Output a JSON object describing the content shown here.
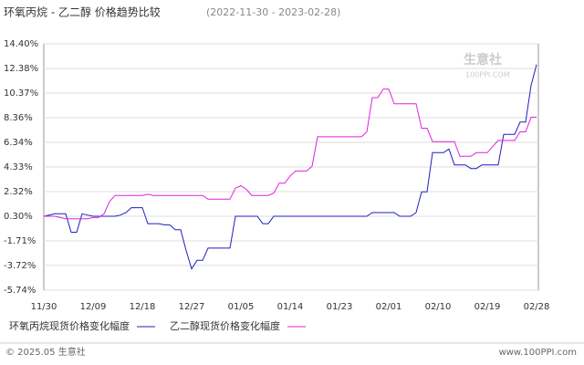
{
  "chart_data": {
    "type": "line",
    "title": "环氧丙烷 - 乙二醇 价格趋势比较",
    "subtitle": "(2022-11-30 - 2023-02-28)",
    "watermark": "生意社",
    "watermark_sub": "100PPI.COM",
    "footer_left": "© 2025.05 生意社",
    "footer_right": "www.100PPI.com",
    "categories": [
      "11/30",
      null,
      null,
      null,
      null,
      null,
      null,
      null,
      null,
      "12/09",
      null,
      null,
      null,
      null,
      null,
      null,
      null,
      null,
      "12/18",
      null,
      null,
      null,
      null,
      null,
      null,
      null,
      null,
      "12/27",
      null,
      null,
      null,
      null,
      null,
      null,
      null,
      null,
      "01/05",
      null,
      null,
      null,
      null,
      null,
      null,
      null,
      null,
      "01/14",
      null,
      null,
      null,
      null,
      null,
      null,
      null,
      null,
      "01/23",
      null,
      null,
      null,
      null,
      null,
      null,
      null,
      null,
      "02/01",
      null,
      null,
      null,
      null,
      null,
      null,
      null,
      null,
      "02/10",
      null,
      null,
      null,
      null,
      null,
      null,
      null,
      null,
      "02/19",
      null,
      null,
      null,
      null,
      null,
      null,
      null,
      null,
      "02/28"
    ],
    "series": [
      {
        "name": "环氧丙烷现货价格变化幅度",
        "color": "#1f1fbf",
        "values": [
          0.3,
          0.4,
          0.5,
          0.5,
          0.5,
          -1.0,
          -1.0,
          0.5,
          0.4,
          0.3,
          0.3,
          0.3,
          0.3,
          0.3,
          0.4,
          0.6,
          1.0,
          1.0,
          1.0,
          -0.3,
          -0.3,
          -0.3,
          -0.4,
          -0.4,
          -0.8,
          -0.8,
          -2.5,
          -4.0,
          -3.3,
          -3.3,
          -2.3,
          -2.3,
          -2.3,
          -2.3,
          -2.3,
          0.3,
          0.3,
          0.3,
          0.3,
          0.3,
          -0.3,
          -0.3,
          0.3,
          0.3,
          0.3,
          0.3,
          0.3,
          0.3,
          0.3,
          0.3,
          0.3,
          0.3,
          0.3,
          0.3,
          0.3,
          0.3,
          0.3,
          0.3,
          0.3,
          0.3,
          0.6,
          0.6,
          0.6,
          0.6,
          0.6,
          0.3,
          0.3,
          0.3,
          0.6,
          2.3,
          2.3,
          5.5,
          5.5,
          5.5,
          5.8,
          4.5,
          4.5,
          4.5,
          4.2,
          4.2,
          4.5,
          4.5,
          4.5,
          4.5,
          7.0,
          7.0,
          7.0,
          8.0,
          8.0,
          11.0,
          12.7
        ]
      },
      {
        "name": "乙二醇现货价格变化幅度",
        "color": "#e020e0",
        "values": [
          0.3,
          0.3,
          0.3,
          0.2,
          0.1,
          0.1,
          0.1,
          0.1,
          0.1,
          0.2,
          0.2,
          0.5,
          1.5,
          2.0,
          2.0,
          2.0,
          2.0,
          2.0,
          2.0,
          2.1,
          2.0,
          2.0,
          2.0,
          2.0,
          2.0,
          2.0,
          2.0,
          2.0,
          2.0,
          2.0,
          1.7,
          1.7,
          1.7,
          1.7,
          1.7,
          2.6,
          2.8,
          2.5,
          2.0,
          2.0,
          2.0,
          2.0,
          2.2,
          3.0,
          3.0,
          3.6,
          4.0,
          4.0,
          4.0,
          4.4,
          6.8,
          6.8,
          6.8,
          6.8,
          6.8,
          6.8,
          6.8,
          6.8,
          6.8,
          7.2,
          10.0,
          10.0,
          10.7,
          10.7,
          9.5,
          9.5,
          9.5,
          9.5,
          9.5,
          7.5,
          7.5,
          6.4,
          6.4,
          6.4,
          6.4,
          6.4,
          5.2,
          5.2,
          5.2,
          5.5,
          5.5,
          5.5,
          6.0,
          6.5,
          6.5,
          6.5,
          6.5,
          7.2,
          7.2,
          8.4,
          8.4
        ]
      }
    ],
    "ylim": [
      -5.74,
      14.4
    ],
    "yticks": [
      {
        "value": 14.4,
        "label": "14.40%"
      },
      {
        "value": 12.38,
        "label": "12.38%"
      },
      {
        "value": 10.37,
        "label": "10.37%"
      },
      {
        "value": 8.36,
        "label": "8.36%"
      },
      {
        "value": 6.34,
        "label": "6.34%"
      },
      {
        "value": 4.33,
        "label": "4.33%"
      },
      {
        "value": 2.32,
        "label": "2.32%"
      },
      {
        "value": 0.3,
        "label": "0.30%"
      },
      {
        "value": -1.71,
        "label": "-1.71%"
      },
      {
        "value": -3.72,
        "label": "-3.72%"
      },
      {
        "value": -5.74,
        "label": "-5.74%"
      }
    ],
    "grid": true
  }
}
